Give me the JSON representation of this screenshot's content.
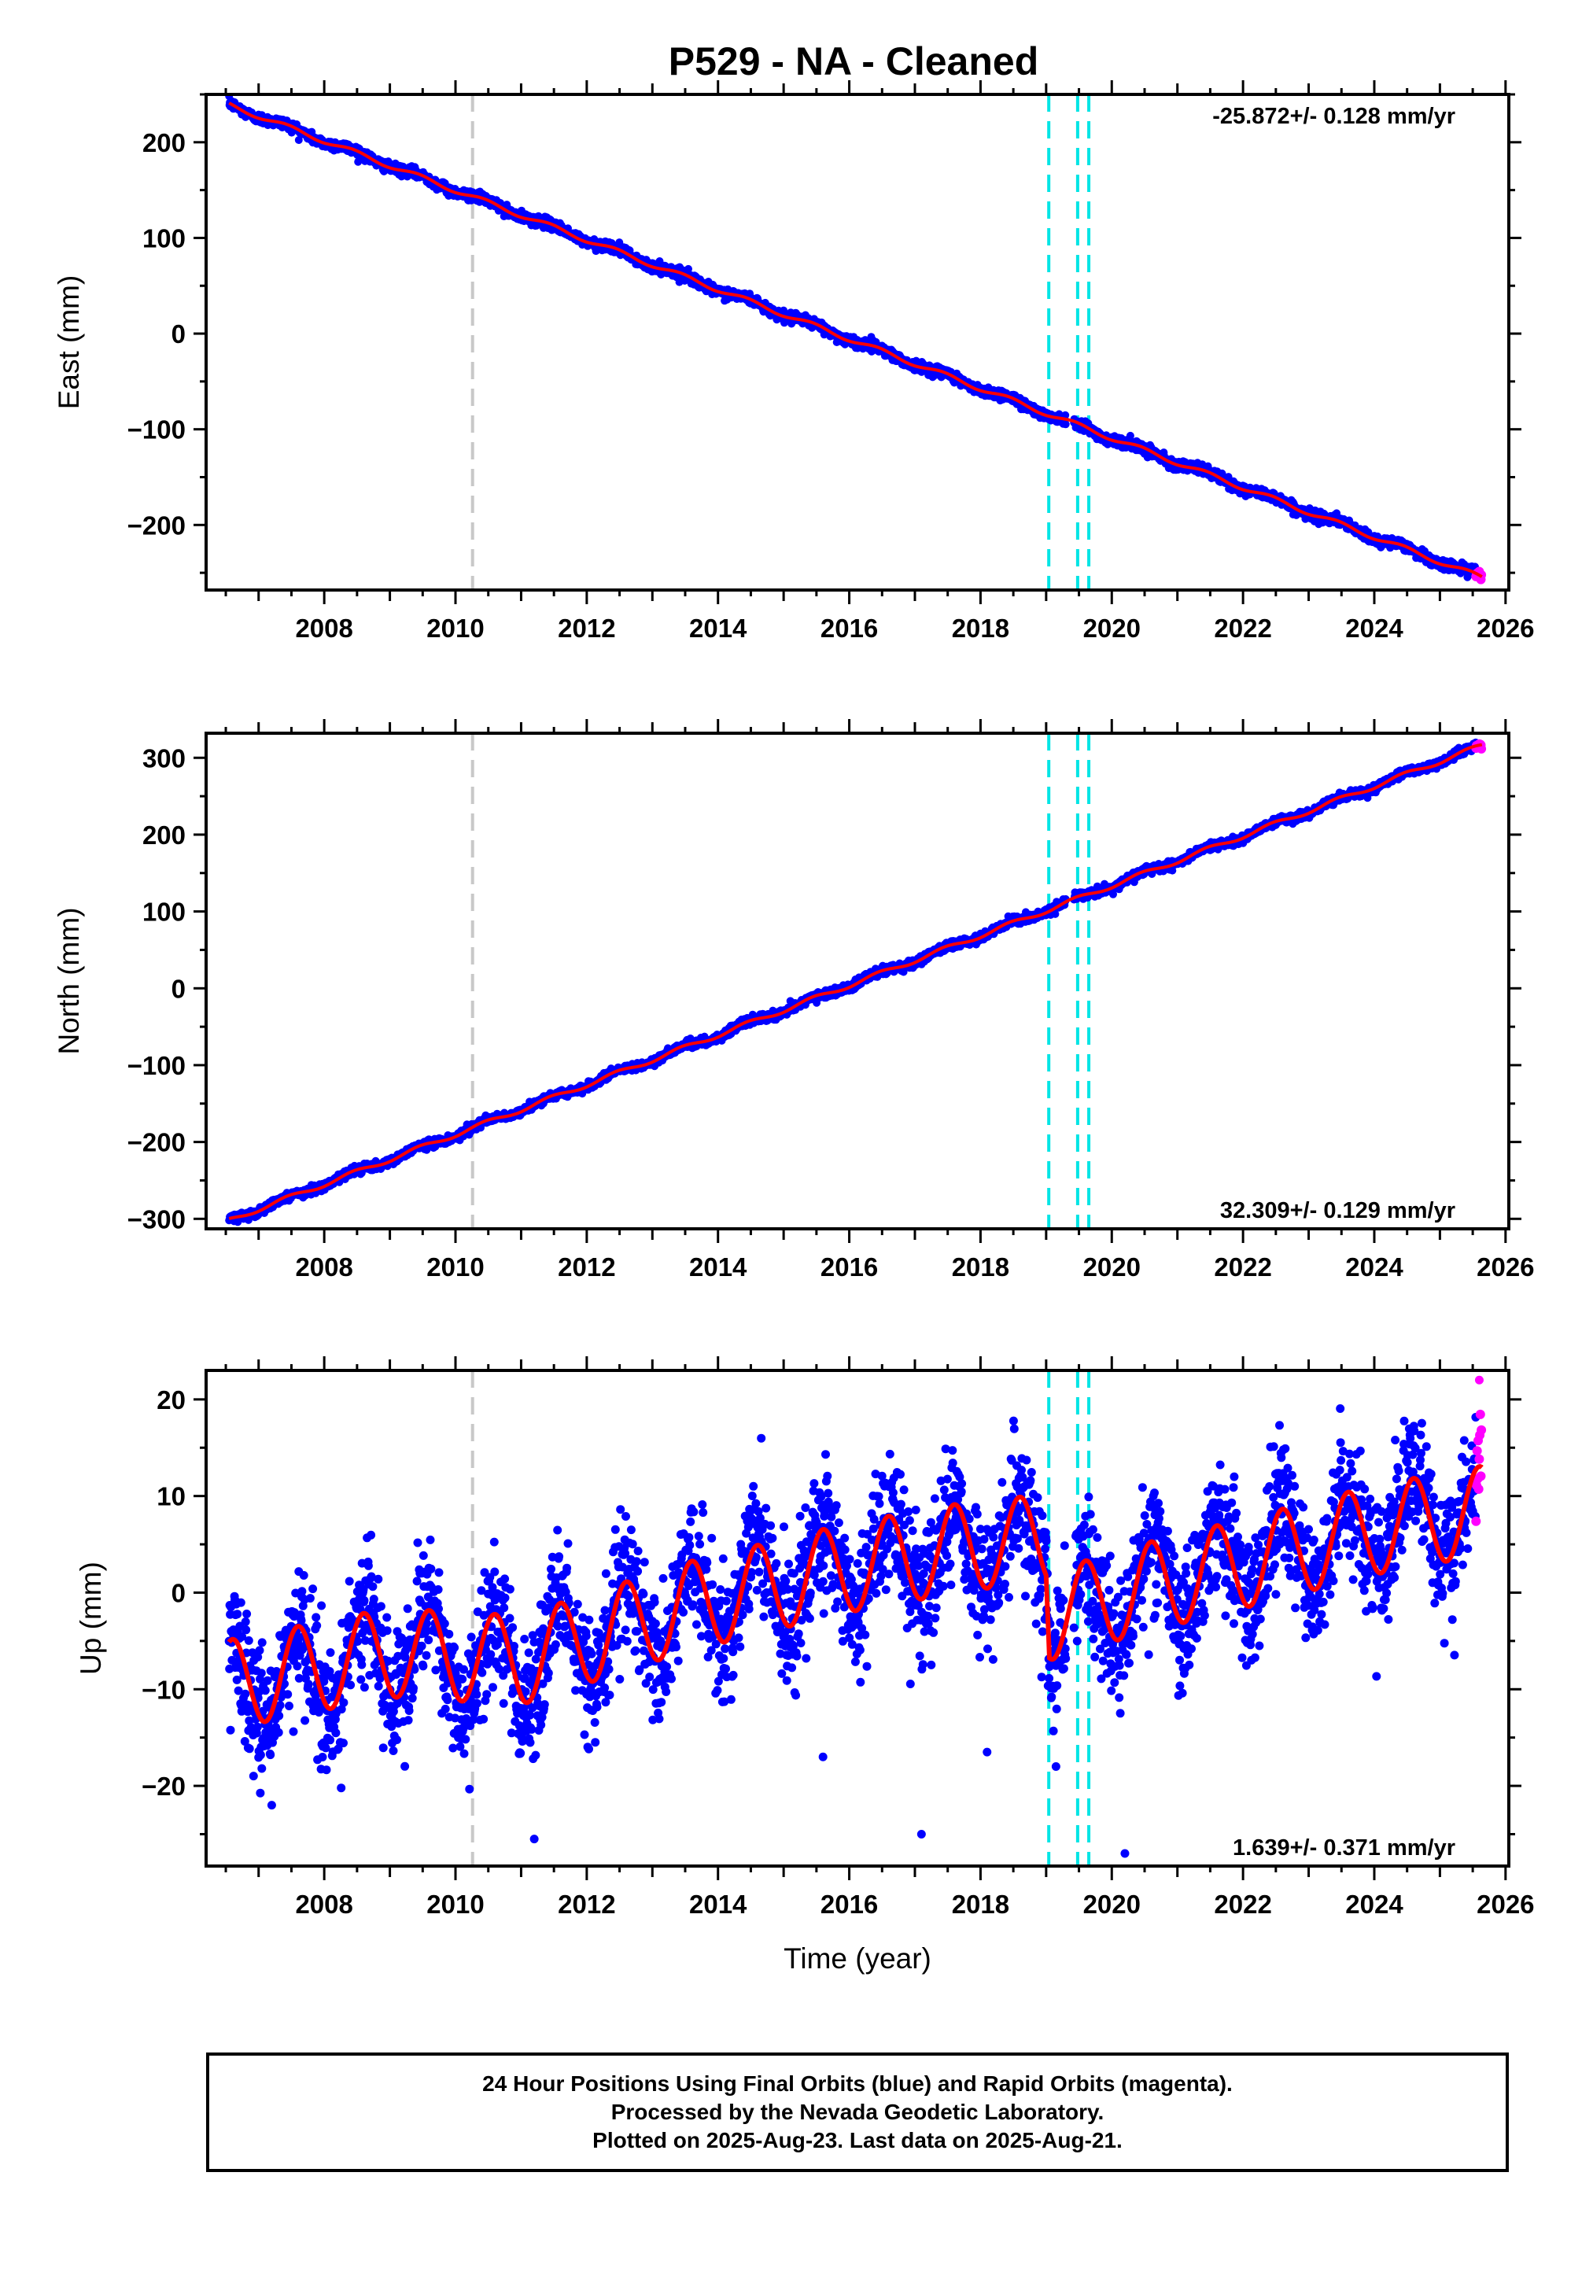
{
  "title": "P529  - NA - Cleaned",
  "xlabel": "Time (year)",
  "footer": {
    "line1": "24 Hour Positions Using Final Orbits (blue) and Rapid Orbits (magenta).",
    "line2": "Processed by the Nevada Geodetic Laboratory.",
    "line3": "Plotted on 2025-Aug-23. Last data on 2025-Aug-21."
  },
  "colors": {
    "final_points": "#0000ff",
    "rapid_points": "#ff00ff",
    "model": "#ff0000",
    "equipment_change_line": "#c8c8c8",
    "earthquake_line": "#00e5e5"
  },
  "chart_data": [
    {
      "type": "scatter",
      "component": "east",
      "ylabel": "East (mm)",
      "rate": "-25.872+/- 0.128 mm/yr",
      "rate_position": "top-right",
      "xlim": [
        2006.2,
        2026.05
      ],
      "ylim": [
        -268,
        250
      ],
      "xticks": [
        2008,
        2010,
        2012,
        2014,
        2016,
        2018,
        2020,
        2022,
        2024,
        2026
      ],
      "yticks": [
        -200,
        -100,
        0,
        100,
        200
      ],
      "data_start": 2006.55,
      "data_end": 2025.64,
      "rapid_start": 2025.55,
      "start_value": 239,
      "end_value": -255,
      "seasonal_amplitude": 2.5,
      "vlines_gray": [
        2010.26
      ],
      "vlines_cyan": [
        2019.04,
        2019.48,
        2019.65
      ],
      "series": [
        {
          "name": "Final Orbits (blue)",
          "color": "#0000ff"
        },
        {
          "name": "Rapid Orbits (magenta)",
          "color": "#ff00ff"
        }
      ]
    },
    {
      "type": "scatter",
      "component": "north",
      "ylabel": "North (mm)",
      "rate": "32.309+/- 0.129 mm/yr",
      "rate_position": "bottom-right",
      "xlim": [
        2006.2,
        2026.05
      ],
      "ylim": [
        -313,
        332
      ],
      "xticks": [
        2008,
        2010,
        2012,
        2014,
        2016,
        2018,
        2020,
        2022,
        2024,
        2026
      ],
      "yticks": [
        -300,
        -200,
        -100,
        0,
        100,
        200,
        300
      ],
      "data_start": 2006.55,
      "data_end": 2025.64,
      "rapid_start": 2025.55,
      "start_value": -302,
      "end_value": 316,
      "seasonal_amplitude": 3,
      "vlines_gray": [
        2010.26
      ],
      "vlines_cyan": [
        2019.04,
        2019.48,
        2019.65
      ],
      "series": [
        {
          "name": "Final Orbits (blue)",
          "color": "#0000ff"
        },
        {
          "name": "Rapid Orbits (magenta)",
          "color": "#ff00ff"
        }
      ]
    },
    {
      "type": "scatter",
      "component": "up",
      "ylabel": "Up (mm)",
      "rate": "1.639+/- 0.371 mm/yr",
      "rate_position": "bottom-right",
      "xlim": [
        2006.2,
        2026.05
      ],
      "ylim": [
        -28.3,
        23
      ],
      "xticks": [
        2008,
        2010,
        2012,
        2014,
        2016,
        2018,
        2020,
        2022,
        2024,
        2026
      ],
      "yticks": [
        -20,
        -10,
        0,
        10,
        20
      ],
      "data_start": 2006.55,
      "data_end": 2025.64,
      "rapid_start": 2025.55,
      "seasonal_amplitude": 4.6,
      "noise": 3.3,
      "model_nodes": [
        [
          2006.55,
          -9.5
        ],
        [
          2009.0,
          -6.2
        ],
        [
          2011.0,
          -7.0
        ],
        [
          2013.5,
          -1.5
        ],
        [
          2016.0,
          2.6
        ],
        [
          2018.0,
          5.0
        ],
        [
          2019.0,
          5.5
        ],
        [
          2019.05,
          -2.4
        ],
        [
          2020.5,
          0.5
        ],
        [
          2022.0,
          3.0
        ],
        [
          2024.0,
          6.5
        ],
        [
          2025.64,
          8.5
        ]
      ],
      "vlines_gray": [
        2010.26
      ],
      "vlines_cyan": [
        2019.04,
        2019.48,
        2019.65
      ],
      "outliers": [
        [
          2007.2,
          -22
        ],
        [
          2015.6,
          -17
        ],
        [
          2017.1,
          -25
        ],
        [
          2018.1,
          -16.5
        ],
        [
          2019.15,
          -18
        ],
        [
          2020.2,
          -27
        ],
        [
          2011.2,
          -25.5
        ],
        [
          2025.6,
          22
        ]
      ],
      "series": [
        {
          "name": "Final Orbits (blue)",
          "color": "#0000ff"
        },
        {
          "name": "Rapid Orbits (magenta)",
          "color": "#ff00ff"
        }
      ]
    }
  ]
}
